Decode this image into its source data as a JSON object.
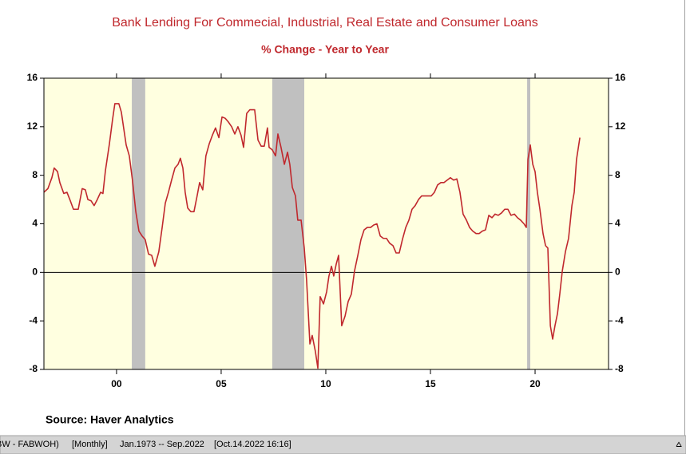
{
  "chart_data": {
    "type": "line",
    "title": "Bank Lending For Commecial, Industrial, Real Estate and Consumer Loans",
    "subtitle": "% Change - Year to Year",
    "source": "Source:  Haver Analytics",
    "x": [
      1996.53,
      1996.72,
      1996.91,
      1997.02,
      1997.18,
      1997.29,
      1997.48,
      1997.63,
      1997.79,
      1997.94,
      1998.17,
      1998.36,
      1998.51,
      1998.63,
      1998.78,
      1998.93,
      1999.08,
      1999.24,
      1999.35,
      1999.47,
      1999.66,
      1999.81,
      1999.92,
      2000.11,
      2000.23,
      2000.34,
      2000.46,
      2000.61,
      2000.76,
      2000.92,
      2001.07,
      2001.22,
      2001.37,
      2001.53,
      2001.68,
      2001.83,
      2002.02,
      2002.18,
      2002.33,
      2002.48,
      2002.63,
      2002.79,
      2002.94,
      2003.05,
      2003.17,
      2003.28,
      2003.4,
      2003.55,
      2003.7,
      2003.85,
      2003.97,
      2004.12,
      2004.27,
      2004.43,
      2004.58,
      2004.73,
      2004.89,
      2005.04,
      2005.19,
      2005.34,
      2005.5,
      2005.65,
      2005.8,
      2005.95,
      2006.07,
      2006.22,
      2006.37,
      2006.6,
      2006.76,
      2006.91,
      2007.06,
      2007.21,
      2007.29,
      2007.44,
      2007.6,
      2007.71,
      2007.86,
      2008.02,
      2008.17,
      2008.28,
      2008.4,
      2008.55,
      2008.66,
      2008.82,
      2008.97,
      2009.08,
      2009.24,
      2009.35,
      2009.5,
      2009.62,
      2009.73,
      2009.89,
      2010.04,
      2010.15,
      2010.27,
      2010.38,
      2010.5,
      2010.61,
      2010.76,
      2010.92,
      2011.07,
      2011.22,
      2011.37,
      2011.53,
      2011.68,
      2011.83,
      2011.98,
      2012.14,
      2012.29,
      2012.44,
      2012.6,
      2012.75,
      2012.9,
      2013.05,
      2013.21,
      2013.36,
      2013.51,
      2013.66,
      2013.82,
      2013.97,
      2014.12,
      2014.27,
      2014.43,
      2014.58,
      2014.73,
      2014.89,
      2015.04,
      2015.19,
      2015.34,
      2015.5,
      2015.65,
      2015.8,
      2015.95,
      2016.11,
      2016.26,
      2016.41,
      2016.56,
      2016.72,
      2016.87,
      2017.02,
      2017.18,
      2017.33,
      2017.48,
      2017.63,
      2017.79,
      2017.94,
      2018.09,
      2018.24,
      2018.4,
      2018.55,
      2018.7,
      2018.85,
      2019.01,
      2019.16,
      2019.31,
      2019.47,
      2019.58,
      2019.66,
      2019.77,
      2019.89,
      2020.0,
      2020.11,
      2020.23,
      2020.38,
      2020.5,
      2020.61,
      2020.73,
      2020.84,
      2020.95,
      2021.07,
      2021.18,
      2021.3,
      2021.45,
      2021.6,
      2021.76,
      2021.87,
      2021.98,
      2022.14
    ],
    "series": [
      {
        "name": "Bank Lending % Change",
        "color": "#c0282d",
        "values": [
          6.6,
          6.9,
          7.8,
          8.6,
          8.3,
          7.4,
          6.5,
          6.6,
          5.9,
          5.2,
          5.2,
          6.9,
          6.8,
          6.0,
          5.9,
          5.5,
          6.0,
          6.6,
          6.5,
          8.4,
          10.6,
          12.6,
          13.9,
          13.9,
          13.2,
          11.9,
          10.5,
          9.6,
          7.6,
          5.0,
          3.4,
          3.0,
          2.7,
          1.5,
          1.4,
          0.5,
          1.7,
          3.7,
          5.7,
          6.6,
          7.6,
          8.6,
          8.9,
          9.4,
          8.6,
          6.6,
          5.3,
          5.0,
          5.0,
          6.3,
          7.4,
          6.8,
          9.6,
          10.6,
          11.3,
          11.9,
          11.1,
          12.8,
          12.7,
          12.4,
          12.0,
          11.4,
          12.0,
          11.3,
          10.3,
          13.1,
          13.4,
          13.4,
          10.9,
          10.4,
          10.4,
          11.9,
          10.3,
          10.1,
          9.6,
          11.4,
          10.3,
          8.9,
          9.9,
          8.9,
          7.0,
          6.3,
          4.3,
          4.3,
          2.0,
          -0.6,
          -5.9,
          -5.2,
          -6.5,
          -7.9,
          -2.0,
          -2.6,
          -1.6,
          -0.3,
          0.5,
          -0.3,
          0.7,
          1.4,
          -4.4,
          -3.6,
          -2.4,
          -1.8,
          0.1,
          1.4,
          2.7,
          3.5,
          3.7,
          3.7,
          3.9,
          4.0,
          3.0,
          2.8,
          2.8,
          2.4,
          2.2,
          1.6,
          1.6,
          2.7,
          3.7,
          4.3,
          5.2,
          5.5,
          6.0,
          6.3,
          6.3,
          6.3,
          6.3,
          6.6,
          7.2,
          7.4,
          7.4,
          7.6,
          7.8,
          7.6,
          7.7,
          6.6,
          4.8,
          4.3,
          3.7,
          3.4,
          3.2,
          3.2,
          3.4,
          3.5,
          4.7,
          4.5,
          4.8,
          4.7,
          4.9,
          5.2,
          5.2,
          4.7,
          4.8,
          4.5,
          4.3,
          4.0,
          3.7,
          9.3,
          10.5,
          8.9,
          8.3,
          6.6,
          5.2,
          3.2,
          2.2,
          2.0,
          -4.4,
          -5.5,
          -4.4,
          -3.4,
          -1.8,
          0.1,
          1.7,
          2.8,
          5.5,
          6.6,
          9.3,
          11.1
        ]
      }
    ],
    "shaded_periods": [
      [
        2000.73,
        2001.37
      ],
      [
        2007.44,
        2008.97
      ],
      [
        2019.62,
        2019.77
      ]
    ],
    "shade_color": "#c0c0c0",
    "plot_background": "#ffffe0",
    "xlim": [
      1996.53,
      2023.51
    ],
    "xticks": [
      {
        "value": 2000,
        "label": "00"
      },
      {
        "value": 2005,
        "label": "05"
      },
      {
        "value": 2010,
        "label": "10"
      },
      {
        "value": 2015,
        "label": "15"
      },
      {
        "value": 2020,
        "label": "20"
      }
    ],
    "ylim": [
      -8,
      16
    ],
    "yticks": [
      -8,
      -4,
      0,
      4,
      8,
      12,
      16
    ],
    "zero_line": true,
    "status_bar": [
      "BW - FABWOH)",
      "[Monthly]",
      "Jan.1973 -- Sep.2022",
      "[Oct.14.2022 16:16]"
    ]
  }
}
